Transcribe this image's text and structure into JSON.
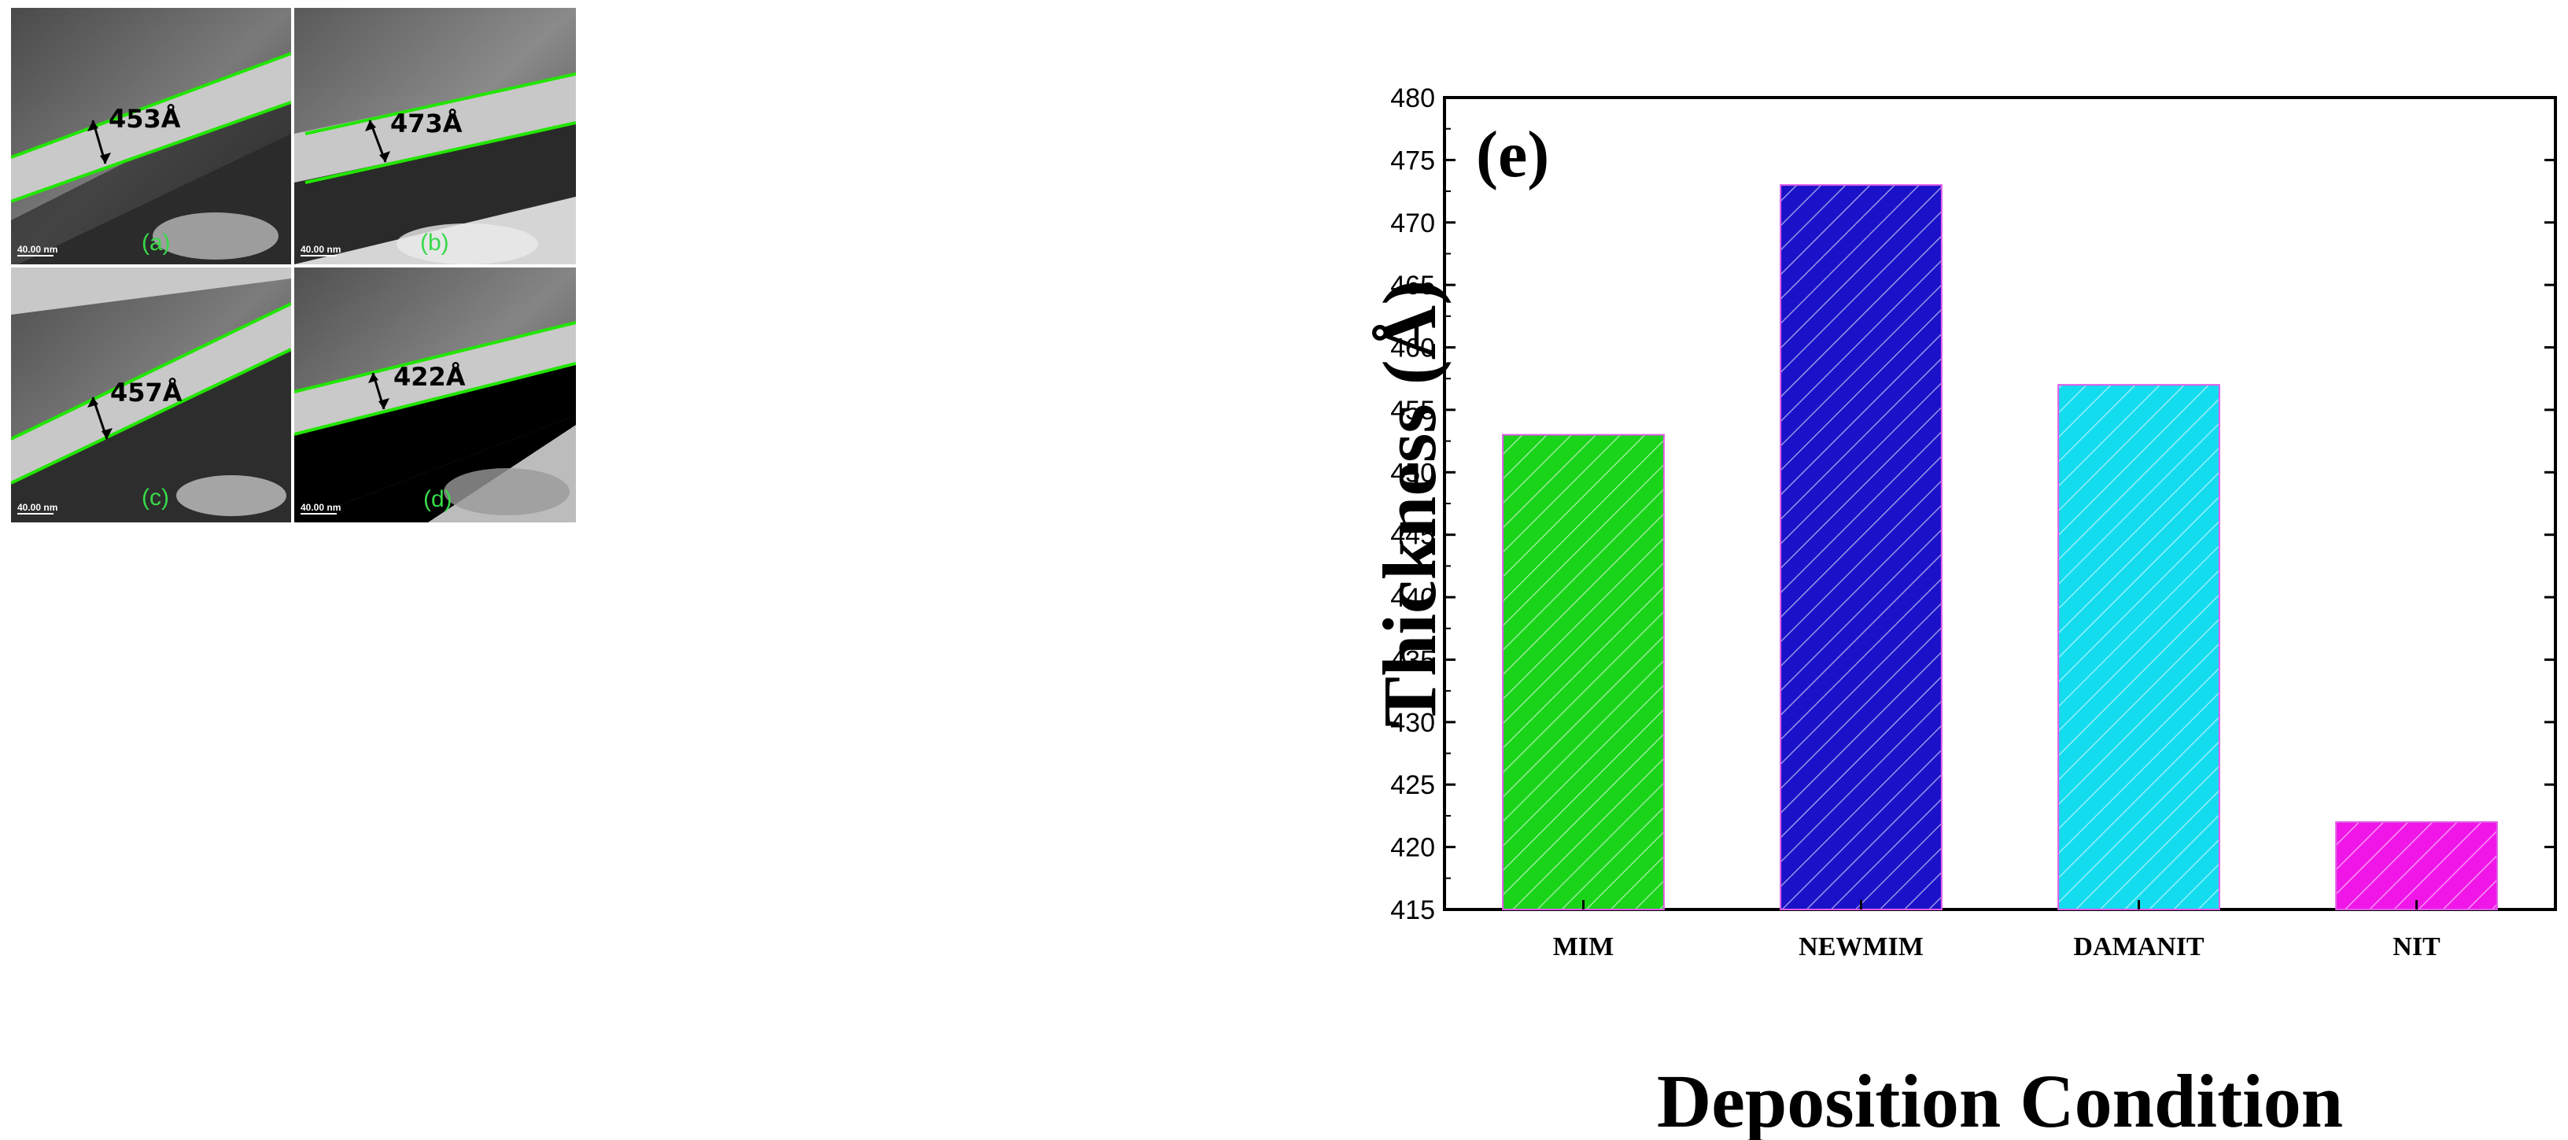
{
  "panels": [
    {
      "label": "(a)",
      "thickness": "453Å",
      "scale_bar": "40.00 nm"
    },
    {
      "label": "(b)",
      "thickness": "473Å",
      "scale_bar": "40.00 nm"
    },
    {
      "label": "(c)",
      "thickness": "457Å",
      "scale_bar": "40.00 nm"
    },
    {
      "label": "(d)",
      "thickness": "422Å",
      "scale_bar": "40.00 nm"
    }
  ],
  "colors": {
    "interface_line": "#22e600",
    "panel_label": "#39d84a",
    "mim": "#19d419",
    "newmim": "#1a12c8",
    "damanit": "#14dcef",
    "nit": "#f016e8",
    "bar_edge": "#e05ae8"
  },
  "chart_data": {
    "type": "bar",
    "panel_label": "(e)",
    "categories": [
      "MIM",
      "NEWMIM",
      "DAMANIT",
      "NIT"
    ],
    "values": [
      453,
      473,
      457,
      422
    ],
    "xlabel": "Deposition Condition",
    "ylabel": "Thickness (Å)",
    "ylim": [
      415,
      480
    ],
    "yticks": [
      415,
      420,
      425,
      430,
      435,
      440,
      445,
      450,
      455,
      460,
      465,
      470,
      475,
      480
    ],
    "grid": false,
    "hatch": "diagonal"
  }
}
